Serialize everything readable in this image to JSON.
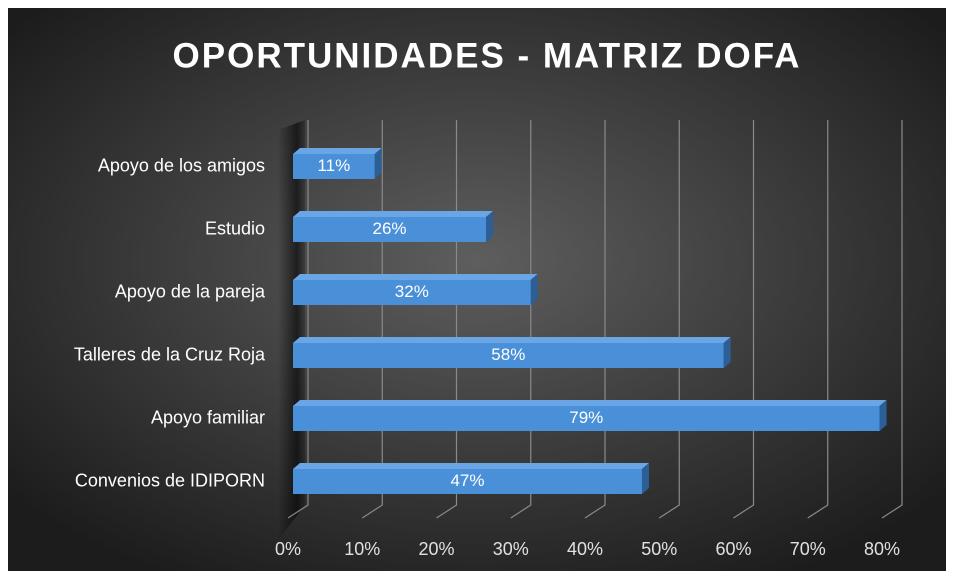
{
  "chart_data": {
    "type": "bar",
    "orientation": "horizontal",
    "title": "OPORTUNIDADES - MATRIZ DOFA",
    "categories": [
      "Apoyo de los amigos",
      "Estudio",
      "Apoyo de la pareja",
      "Talleres de la Cruz Roja ",
      "Apoyo familiar ",
      "Convenios de IDIPORN"
    ],
    "values": [
      11,
      26,
      32,
      58,
      79,
      47
    ],
    "value_labels": [
      "11%",
      "26%",
      "32%",
      "58%",
      "79%",
      "47%"
    ],
    "color": "#4a90d9",
    "xlim": [
      0,
      80
    ],
    "xticks": [
      {
        "value": 0,
        "label": "0%"
      },
      {
        "value": 10,
        "label": "10%"
      },
      {
        "value": 20,
        "label": "20%"
      },
      {
        "value": 30,
        "label": "30%"
      },
      {
        "value": 40,
        "label": "40%"
      },
      {
        "value": 50,
        "label": "50%"
      },
      {
        "value": 60,
        "label": "60%"
      },
      {
        "value": 70,
        "label": "70%"
      },
      {
        "value": 80,
        "label": "80%"
      }
    ],
    "grid": true
  }
}
